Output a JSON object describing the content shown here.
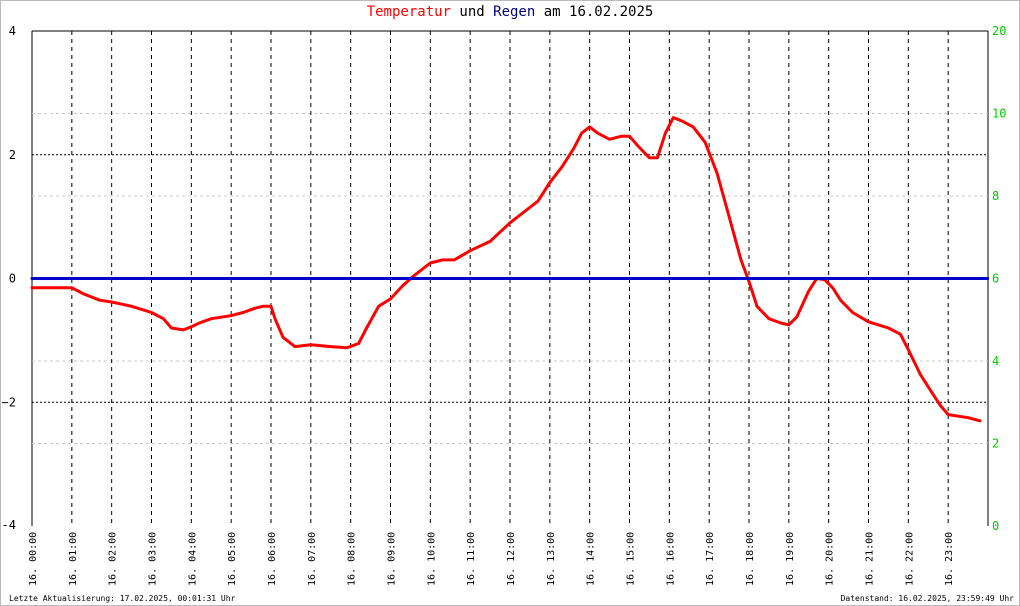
{
  "chart_data": {
    "type": "line",
    "title_parts": [
      {
        "text": "Temperatur",
        "color": "#ff0000"
      },
      {
        "text": " und ",
        "color": "#000000"
      },
      {
        "text": "Regen",
        "color": "#000080"
      },
      {
        "text": " am 16.02.2025",
        "color": "#000000"
      }
    ],
    "left_axis": {
      "ylim": [
        -4,
        4
      ],
      "ticks": [
        "-4",
        "−2",
        "0",
        "2",
        "4"
      ],
      "tick_values": [
        -4,
        -2,
        0,
        2,
        4
      ],
      "color": "#000000"
    },
    "right_axis": {
      "ylim": [
        0,
        20
      ],
      "ticks": [
        "0",
        "2",
        "4",
        "6",
        "8",
        "10",
        "20"
      ],
      "color": "#00cc00"
    },
    "x_labels": [
      "16. 00:00",
      "16. 01:00",
      "16. 02:00",
      "16. 03:00",
      "16. 04:00",
      "16. 05:00",
      "16. 06:00",
      "16. 07:00",
      "16. 08:00",
      "16. 09:00",
      "16. 10:00",
      "16. 11:00",
      "16. 12:00",
      "16. 13:00",
      "16. 14:00",
      "16. 15:00",
      "16. 16:00",
      "16. 17:00",
      "16. 18:00",
      "16. 19:00",
      "16. 20:00",
      "16. 21:00",
      "16. 22:00",
      "16. 23:00"
    ],
    "grid": true,
    "series": [
      {
        "name": "Temperatur",
        "color": "#ff0000",
        "x_hours": [
          0,
          0.5,
          1,
          1.3,
          1.7,
          2,
          2.5,
          3,
          3.3,
          3.5,
          3.8,
          4,
          4.2,
          4.5,
          5,
          5.3,
          5.6,
          5.8,
          6,
          6.1,
          6.3,
          6.6,
          7,
          7.5,
          7.9,
          8.2,
          8.4,
          8.7,
          9,
          9.3,
          9.6,
          10,
          10.3,
          10.6,
          11,
          11.5,
          12,
          12.3,
          12.7,
          13,
          13.3,
          13.6,
          13.8,
          14,
          14.2,
          14.5,
          14.8,
          15,
          15.2,
          15.5,
          15.7,
          15.9,
          16.1,
          16.3,
          16.6,
          16.9,
          17.2,
          17.5,
          17.8,
          18,
          18.2,
          18.5,
          18.8,
          19,
          19.2,
          19.5,
          19.7,
          19.9,
          20.1,
          20.3,
          20.6,
          21,
          21.5,
          21.8,
          22,
          22.3,
          22.6,
          22.8,
          23,
          23.5,
          23.8
        ],
        "y": [
          -0.15,
          -0.15,
          -0.15,
          -0.25,
          -0.35,
          -0.38,
          -0.45,
          -0.55,
          -0.65,
          -0.8,
          -0.83,
          -0.78,
          -0.72,
          -0.65,
          -0.6,
          -0.55,
          -0.48,
          -0.45,
          -0.45,
          -0.65,
          -0.95,
          -1.1,
          -1.07,
          -1.1,
          -1.12,
          -1.05,
          -0.8,
          -0.45,
          -0.33,
          -0.12,
          0.05,
          0.25,
          0.3,
          0.3,
          0.45,
          0.6,
          0.9,
          1.05,
          1.25,
          1.55,
          1.8,
          2.1,
          2.35,
          2.45,
          2.35,
          2.25,
          2.3,
          2.3,
          2.15,
          1.95,
          1.95,
          2.35,
          2.6,
          2.55,
          2.45,
          2.2,
          1.7,
          1.0,
          0.3,
          -0.05,
          -0.45,
          -0.65,
          -0.72,
          -0.75,
          -0.62,
          -0.2,
          0.0,
          -0.02,
          -0.15,
          -0.35,
          -0.55,
          -0.7,
          -0.8,
          -0.9,
          -1.15,
          -1.55,
          -1.85,
          -2.05,
          -2.2,
          -2.25,
          -2.3
        ]
      },
      {
        "name": "Regen",
        "color": "#0000cc",
        "x_hours": [
          0,
          23.99
        ],
        "y": [
          0,
          0
        ]
      }
    ]
  },
  "footer": {
    "left": "Letzte Aktualisierung: 17.02.2025, 00:01:31 Uhr",
    "right": "Datenstand: 16.02.2025, 23:59:49 Uhr"
  }
}
